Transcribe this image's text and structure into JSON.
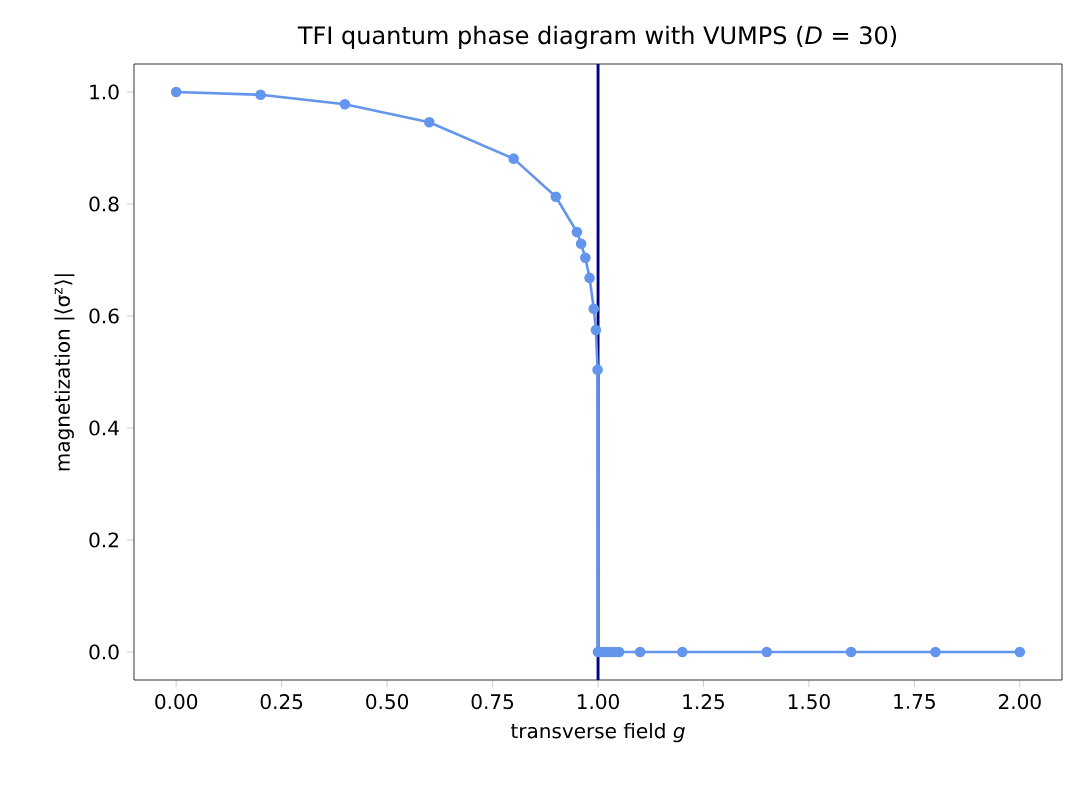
{
  "chart_data": {
    "type": "line",
    "title": "TFI quantum phase diagram with VUMPS (*D* = 30)",
    "xlabel": "transverse field *g*",
    "ylabel": "magnetization |⟨σ$^{z}$⟩|",
    "x": [
      0,
      0.2,
      0.4,
      0.6,
      0.8,
      0.9,
      0.95,
      0.96,
      0.97,
      0.98,
      0.99,
      0.995,
      0.999,
      1.0,
      1.01,
      1.02,
      1.03,
      1.04,
      1.05,
      1.1,
      1.2,
      1.4,
      1.6,
      1.8,
      2.0
    ],
    "series": [
      {
        "color": "#6495ed",
        "values": [
          1.0,
          0.995,
          0.978,
          0.946,
          0.881,
          0.813,
          0.75,
          0.729,
          0.704,
          0.668,
          0.613,
          0.575,
          0.504,
          0,
          0,
          0,
          0,
          0,
          0,
          0,
          0,
          0,
          0,
          0,
          0
        ]
      }
    ],
    "marker": "circle",
    "line_style": "solid",
    "xlim": [
      -0.1,
      2.1
    ],
    "ylim": [
      -0.05,
      1.05
    ],
    "xticks": [
      {
        "value": 0,
        "label": "0.00"
      },
      {
        "value": 0.25,
        "label": "0.25"
      },
      {
        "value": 0.5,
        "label": "0.50"
      },
      {
        "value": 0.75,
        "label": "0.75"
      },
      {
        "value": 1,
        "label": "1.00"
      },
      {
        "value": 1.25,
        "label": "1.25"
      },
      {
        "value": 1.5,
        "label": "1.50"
      },
      {
        "value": 1.75,
        "label": "1.75"
      },
      {
        "value": 2,
        "label": "2.00"
      }
    ],
    "yticks": [
      {
        "value": 0,
        "label": "0.0"
      },
      {
        "value": 0.2,
        "label": "0.2"
      },
      {
        "value": 0.4,
        "label": "0.4"
      },
      {
        "value": 0.6,
        "label": "0.6"
      },
      {
        "value": 0.8,
        "label": "0.8"
      },
      {
        "value": 1,
        "label": "1.0"
      }
    ],
    "ref_lines": [
      {
        "axis": "x",
        "value": 1,
        "color": "#000080"
      }
    ]
  }
}
